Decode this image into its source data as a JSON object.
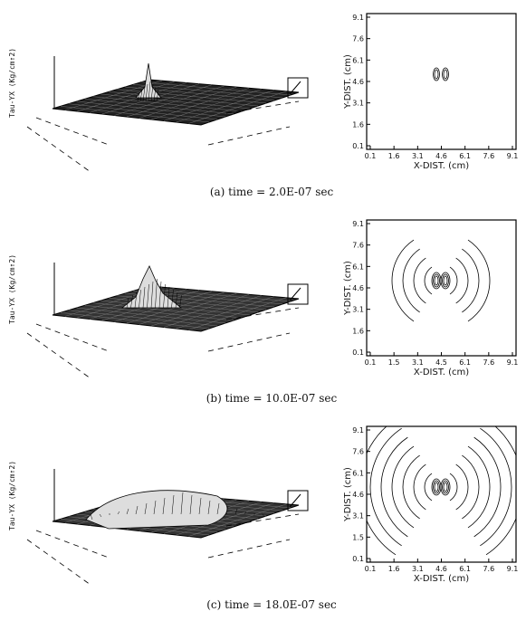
{
  "panels": [
    {
      "caption": "(a) time = 2.0E-07 sec",
      "surface": {
        "z_label": "Tau-YX (Kg/cm↑2)"
      },
      "contour": {
        "xticks": [
          "0.1",
          "1.6",
          "3.1",
          "4.6",
          "6.1",
          "7.6",
          "9.1"
        ],
        "yticks": [
          "0.1",
          "1.6",
          "3.1",
          "4.6",
          "6.1",
          "7.6",
          "9.1"
        ],
        "x_label": "X-DIST. (cm)",
        "y_label": "Y-DIST. (cm)"
      }
    },
    {
      "caption": "(b) time = 10.0E-07 sec",
      "surface": {
        "z_label": "Tau-YX (Kg/cm↑2)"
      },
      "contour": {
        "xticks": [
          "0.1",
          "1.5",
          "3.1",
          "4.5",
          "6.1",
          "7.6",
          "9.1"
        ],
        "yticks": [
          "0.1",
          "1.6",
          "3.1",
          "4.6",
          "6.1",
          "7.6",
          "9.1"
        ],
        "x_label": "X-DIST. (cm)",
        "y_label": "Y-DIST. (cm)"
      }
    },
    {
      "caption": "(c) time = 18.0E-07 sec",
      "surface": {
        "z_label": "Tau-YX (Kg/cm↑2)"
      },
      "contour": {
        "xticks": [
          "0.1",
          "1.6",
          "3.1",
          "4.6",
          "6.1",
          "7.6",
          "9.1"
        ],
        "yticks": [
          "0.1",
          "1.5",
          "3.1",
          "4.6",
          "6.1",
          "7.6",
          "9.1"
        ],
        "x_label": "X-DIST. (cm)",
        "y_label": "Y-DIST. (cm)"
      }
    }
  ]
}
